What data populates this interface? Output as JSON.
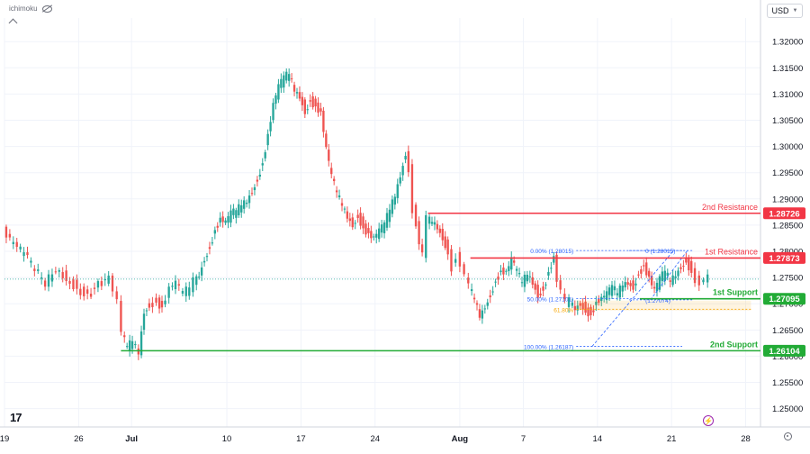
{
  "header": {
    "indicator_label": "ichimoku",
    "currency": "USD",
    "icons": [
      "eye-hidden-icon",
      "chevron-down-icon",
      "collapse-chevron-icon",
      "tradingview-logo-icon",
      "lightning-icon",
      "gear-icon"
    ]
  },
  "chart_data": {
    "type": "candlestick",
    "y_axis": {
      "ylim": [
        1.2465,
        1.3245
      ],
      "ticks": [
        "1.32000",
        "1.31500",
        "1.31000",
        "1.30500",
        "1.30000",
        "1.29500",
        "1.29000",
        "1.28500",
        "1.28000",
        "1.27500",
        "1.27000",
        "1.26500",
        "1.26000",
        "1.25500",
        "1.25000"
      ]
    },
    "x_axis": {
      "ticks": [
        {
          "label": "19",
          "day": 0
        },
        {
          "label": "26",
          "day": 7
        },
        {
          "label": "Jul",
          "day": 12
        },
        {
          "label": "10",
          "day": 21
        },
        {
          "label": "17",
          "day": 28
        },
        {
          "label": "24",
          "day": 35
        },
        {
          "label": "Aug",
          "day": 43
        },
        {
          "label": "7",
          "day": 49
        },
        {
          "label": "14",
          "day": 56
        },
        {
          "label": "21",
          "day": 63
        },
        {
          "label": "28",
          "day": 70
        }
      ],
      "bold_labels": [
        "Jul",
        "Aug"
      ],
      "xlim_days": [
        0,
        71.4
      ]
    },
    "current_price": 1.2747,
    "candles_4h_close_path": [
      [
        0,
        1.2838
      ],
      [
        1,
        1.281
      ],
      [
        2,
        1.2795
      ],
      [
        3,
        1.2765
      ],
      [
        4,
        1.274
      ],
      [
        5,
        1.277
      ],
      [
        6,
        1.275
      ],
      [
        7,
        1.273
      ],
      [
        8,
        1.2715
      ],
      [
        9,
        1.2735
      ],
      [
        10,
        1.2745
      ],
      [
        10.8,
        1.27
      ],
      [
        11.2,
        1.264
      ],
      [
        11.7,
        1.2615
      ],
      [
        12.2,
        1.263
      ],
      [
        12.8,
        1.261
      ],
      [
        13.3,
        1.269
      ],
      [
        13.8,
        1.27
      ],
      [
        14.5,
        1.2705
      ],
      [
        15,
        1.269
      ],
      [
        15.7,
        1.2725
      ],
      [
        16.3,
        1.2735
      ],
      [
        17,
        1.2718
      ],
      [
        17.6,
        1.273
      ],
      [
        18,
        1.2745
      ],
      [
        18.5,
        1.276
      ],
      [
        19,
        1.279
      ],
      [
        19.5,
        1.281
      ],
      [
        20,
        1.284
      ],
      [
        20.5,
        1.2858
      ],
      [
        21,
        1.285
      ],
      [
        21.5,
        1.287
      ],
      [
        22,
        1.2875
      ],
      [
        22.5,
        1.289
      ],
      [
        23,
        1.29
      ],
      [
        23.5,
        1.292
      ],
      [
        24,
        1.294
      ],
      [
        24.5,
        1.297
      ],
      [
        25,
        1.302
      ],
      [
        25.5,
        1.3075
      ],
      [
        26,
        1.311
      ],
      [
        26.5,
        1.313
      ],
      [
        27,
        1.3138
      ],
      [
        27.5,
        1.311
      ],
      [
        28,
        1.31
      ],
      [
        28.5,
        1.307
      ],
      [
        29,
        1.309
      ],
      [
        29.5,
        1.3075
      ],
      [
        30,
        1.306
      ],
      [
        30.5,
        1.299
      ],
      [
        31,
        1.294
      ],
      [
        31.5,
        1.291
      ],
      [
        32,
        1.289
      ],
      [
        32.5,
        1.287
      ],
      [
        33,
        1.2855
      ],
      [
        33.5,
        1.287
      ],
      [
        34,
        1.2845
      ],
      [
        34.5,
        1.283
      ],
      [
        35,
        1.282
      ],
      [
        35.5,
        1.2835
      ],
      [
        36,
        1.285
      ],
      [
        36.5,
        1.288
      ],
      [
        37,
        1.291
      ],
      [
        37.5,
        1.295
      ],
      [
        38,
        1.299
      ],
      [
        38.3,
        1.296
      ],
      [
        38.7,
        1.288
      ],
      [
        39,
        1.285
      ],
      [
        39.3,
        1.281
      ],
      [
        39.6,
        1.279
      ],
      [
        40,
        1.286
      ],
      [
        40.5,
        1.286
      ],
      [
        41,
        1.285
      ],
      [
        41.5,
        1.283
      ],
      [
        42,
        1.28
      ],
      [
        42.4,
        1.277
      ],
      [
        42.8,
        1.279
      ],
      [
        43.2,
        1.277
      ],
      [
        43.6,
        1.275
      ],
      [
        44,
        1.273
      ],
      [
        44.5,
        1.271
      ],
      [
        45,
        1.268
      ],
      [
        45.5,
        1.27
      ],
      [
        46,
        1.272
      ],
      [
        46.5,
        1.2745
      ],
      [
        47,
        1.276
      ],
      [
        47.5,
        1.2755
      ],
      [
        48,
        1.278
      ],
      [
        48.5,
        1.276
      ],
      [
        49,
        1.274
      ],
      [
        49.5,
        1.276
      ],
      [
        50,
        1.2745
      ],
      [
        50.5,
        1.272
      ],
      [
        51,
        1.273
      ],
      [
        51.5,
        1.276
      ],
      [
        52,
        1.2785
      ],
      [
        52.3,
        1.274
      ],
      [
        52.7,
        1.272
      ],
      [
        53.1,
        1.27
      ],
      [
        53.5,
        1.2705
      ],
      [
        54,
        1.2695
      ],
      [
        54.5,
        1.2705
      ],
      [
        55,
        1.269
      ],
      [
        55.5,
        1.268
      ],
      [
        56,
        1.27
      ],
      [
        56.5,
        1.2705
      ],
      [
        57,
        1.2715
      ],
      [
        57.5,
        1.273
      ],
      [
        58,
        1.272
      ],
      [
        58.5,
        1.274
      ],
      [
        59,
        1.2745
      ],
      [
        59.5,
        1.2735
      ],
      [
        60,
        1.276
      ],
      [
        60.5,
        1.277
      ],
      [
        61,
        1.2745
      ],
      [
        61.5,
        1.272
      ],
      [
        62,
        1.2745
      ],
      [
        62.5,
        1.276
      ],
      [
        63,
        1.2745
      ],
      [
        63.5,
        1.276
      ],
      [
        64,
        1.2775
      ],
      [
        64.5,
        1.2785
      ],
      [
        65,
        1.276
      ],
      [
        65.4,
        1.2745
      ],
      [
        65.8,
        1.2735
      ],
      [
        66.2,
        1.274
      ],
      [
        66.6,
        1.2747
      ]
    ],
    "horizontal_levels": [
      {
        "name": "2nd Resistance",
        "value": 1.28726,
        "label": "2nd Resistance",
        "price_label": "1.28726",
        "color": "#f23645",
        "start_day": 40
      },
      {
        "name": "1st Resistance",
        "value": 1.27873,
        "label": "1st Resistance",
        "price_label": "1.27873",
        "color": "#f23645",
        "start_day": 44
      },
      {
        "name": "1st Support",
        "value": 1.27095,
        "label": "1st Support",
        "price_label": "1.27095",
        "color": "#22ab36",
        "start_day": 60
      },
      {
        "name": "2nd Support",
        "value": 1.26104,
        "label": "2nd Support",
        "price_label": "1.26104",
        "color": "#22ab36",
        "start_day": 11
      }
    ],
    "fibonacci": {
      "color_primary": "#2962ff",
      "color_618": "#f7a600",
      "levels": [
        {
          "label": "0.00% (1.28015)",
          "value": 1.28015,
          "day_start": 54,
          "day_end": 64
        },
        {
          "label": "50.00% (1.27101)",
          "value": 1.27101,
          "day_start": 54,
          "day_end": 64
        },
        {
          "label": "61.80% ",
          "value": 1.26895,
          "day_start": 54,
          "day_end": 70.5
        },
        {
          "label": "100.00% (1.26187)",
          "value": 1.26187,
          "day_start": 54,
          "day_end": 64
        }
      ],
      "second_fib": [
        {
          "label": "0 (1.28015)",
          "value": 1.28015,
          "day_start": 59,
          "day_end": 65
        },
        {
          "label": "(1.27074)",
          "value": 1.27074,
          "day_start": 59,
          "day_end": 65
        }
      ]
    },
    "colors": {
      "up": "#26a69a",
      "down": "#ef5350",
      "price_line": "#26a69a",
      "grid": "#f0f3fa",
      "axis_text": "#131722"
    }
  }
}
